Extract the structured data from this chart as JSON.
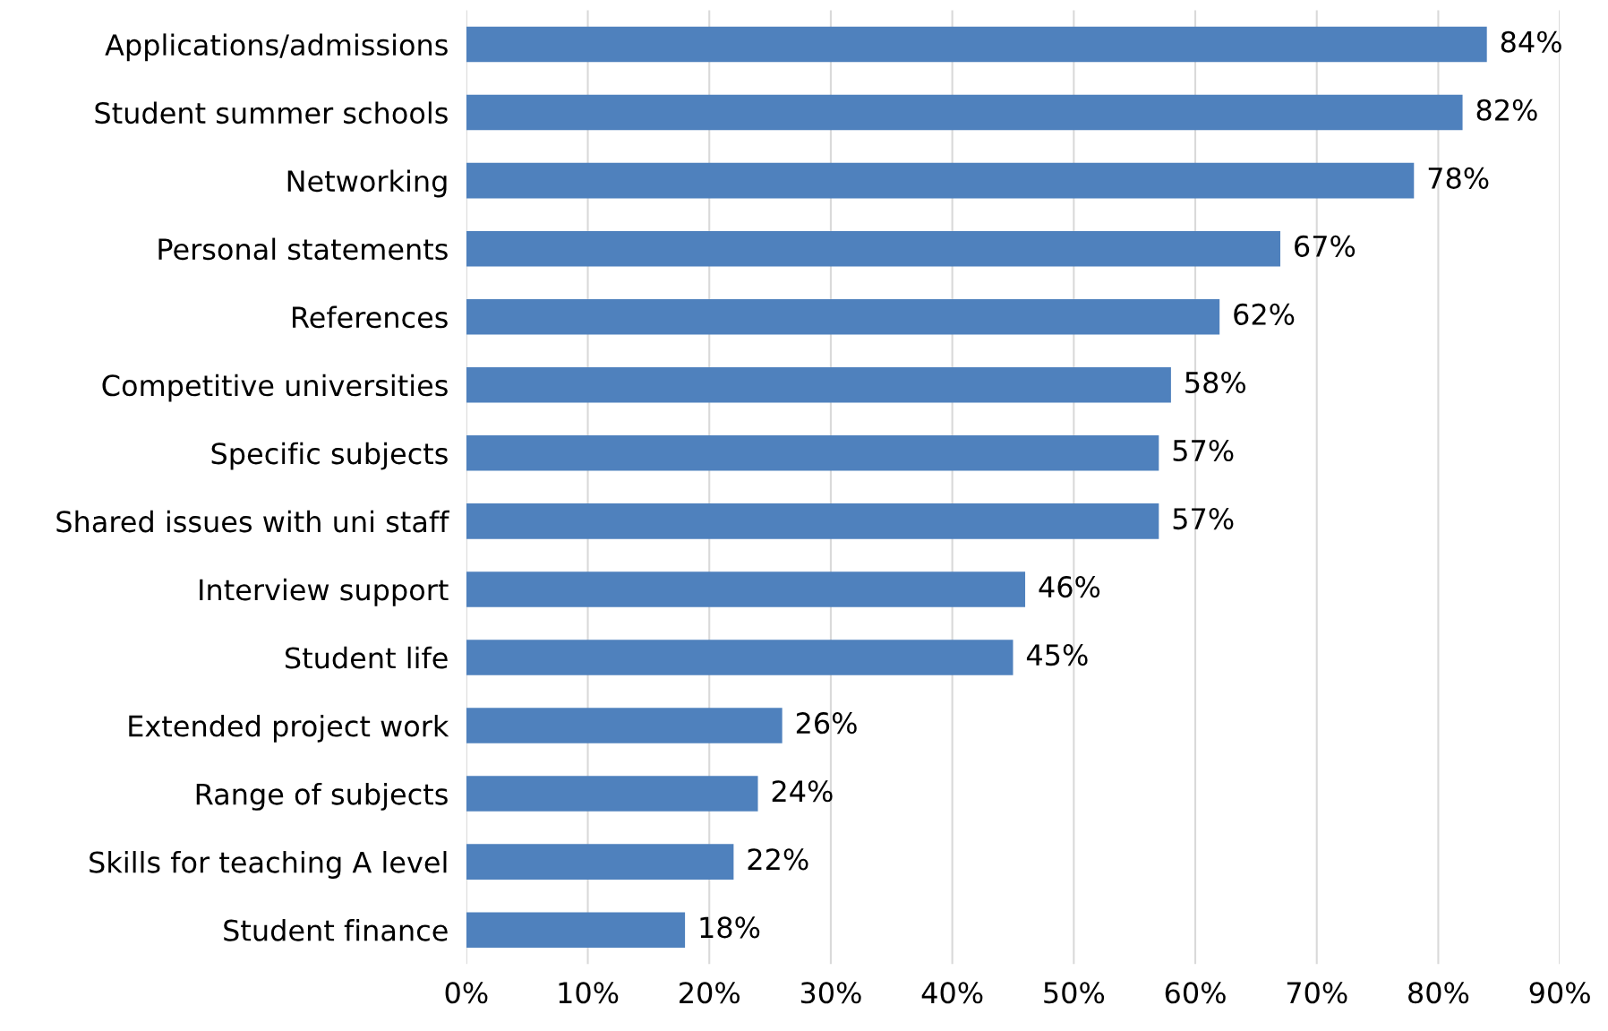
{
  "chart_data": {
    "type": "bar",
    "orientation": "horizontal",
    "categories": [
      "Applications/admissions",
      "Student summer schools",
      "Networking",
      "Personal statements",
      "References",
      "Competitive universities",
      "Specific subjects",
      "Shared issues with uni staff",
      "Interview support",
      "Student life",
      "Extended project work",
      "Range of subjects",
      "Skills for teaching A level",
      "Student finance"
    ],
    "values": [
      84,
      82,
      78,
      67,
      62,
      58,
      57,
      57,
      46,
      45,
      26,
      24,
      22,
      18
    ],
    "value_labels": [
      "84%",
      "82%",
      "78%",
      "67%",
      "62%",
      "58%",
      "57%",
      "57%",
      "46%",
      "45%",
      "26%",
      "24%",
      "22%",
      "18%"
    ],
    "color": "#4f81bd",
    "xlim": [
      0,
      90
    ],
    "xticks": [
      {
        "value": 0,
        "label": "0%"
      },
      {
        "value": 10,
        "label": "10%"
      },
      {
        "value": 20,
        "label": "20%"
      },
      {
        "value": 30,
        "label": "30%"
      },
      {
        "value": 40,
        "label": "40%"
      },
      {
        "value": 50,
        "label": "50%"
      },
      {
        "value": 60,
        "label": "60%"
      },
      {
        "value": 70,
        "label": "70%"
      },
      {
        "value": 80,
        "label": "80%"
      },
      {
        "value": 90,
        "label": "90%"
      }
    ],
    "grid": "x"
  }
}
